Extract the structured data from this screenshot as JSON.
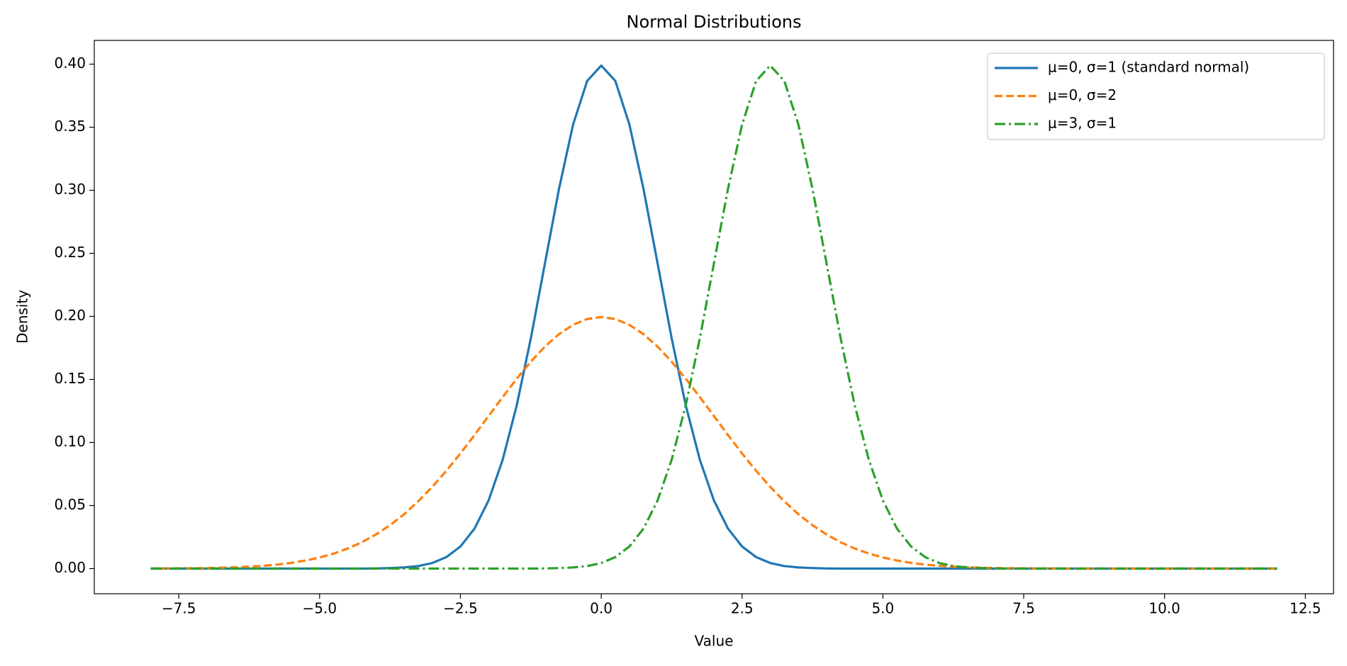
{
  "chart_data": {
    "type": "line",
    "title": "Normal Distributions",
    "xlabel": "Value",
    "ylabel": "Density",
    "x": [
      -8,
      -7.75,
      -7.5,
      -7.25,
      -7,
      -6.75,
      -6.5,
      -6.25,
      -6,
      -5.75,
      -5.5,
      -5.25,
      -5,
      -4.75,
      -4.5,
      -4.25,
      -4,
      -3.75,
      -3.5,
      -3.25,
      -3,
      -2.75,
      -2.5,
      -2.25,
      -2,
      -1.75,
      -1.5,
      -1.25,
      -1,
      -0.75,
      -0.5,
      -0.25,
      0,
      0.25,
      0.5,
      0.75,
      1,
      1.25,
      1.5,
      1.75,
      2,
      2.25,
      2.5,
      2.75,
      3,
      3.25,
      3.5,
      3.75,
      4,
      4.25,
      4.5,
      4.75,
      5,
      5.25,
      5.5,
      5.75,
      6,
      6.25,
      6.5,
      6.75,
      7,
      7.25,
      7.5,
      7.75,
      8,
      8.25,
      8.5,
      8.75,
      9,
      9.25,
      9.5,
      9.75,
      10,
      10.25,
      10.5,
      10.75,
      11,
      11.25,
      11.5,
      11.75,
      12
    ],
    "series": [
      {
        "name": "μ=0, σ=1 (standard normal)",
        "color": "#1f77b4",
        "linestyle": "solid",
        "values": [
          0,
          0,
          0,
          0,
          0,
          0,
          0,
          0,
          0,
          0,
          0,
          0,
          0,
          0,
          0,
          0,
          0.0001,
          0.0004,
          0.0009,
          0.002,
          0.0044,
          0.0091,
          0.0175,
          0.0317,
          0.054,
          0.0863,
          0.1295,
          0.1826,
          0.242,
          0.3011,
          0.3521,
          0.3867,
          0.3989,
          0.3867,
          0.3521,
          0.3011,
          0.242,
          0.1826,
          0.1295,
          0.0863,
          0.054,
          0.0317,
          0.0175,
          0.0091,
          0.0044,
          0.002,
          0.0009,
          0.0004,
          0.0001,
          0,
          0,
          0,
          0,
          0,
          0,
          0,
          0,
          0,
          0,
          0,
          0,
          0,
          0,
          0,
          0,
          0,
          0,
          0,
          0,
          0,
          0,
          0,
          0,
          0,
          0,
          0,
          0,
          0,
          0,
          0,
          0
        ]
      },
      {
        "name": "μ=0, σ=2",
        "color": "#ff7f0e",
        "linestyle": "dashed",
        "values": [
          0.0001,
          0.0001,
          0.0002,
          0.0003,
          0.0004,
          0.0007,
          0.001,
          0.0015,
          0.0022,
          0.0032,
          0.0045,
          0.0064,
          0.0088,
          0.0119,
          0.0159,
          0.0209,
          0.027,
          0.0344,
          0.0431,
          0.0533,
          0.0648,
          0.0775,
          0.0913,
          0.1059,
          0.121,
          0.136,
          0.1506,
          0.1641,
          0.176,
          0.1859,
          0.1933,
          0.1979,
          0.1995,
          0.1979,
          0.1933,
          0.1859,
          0.176,
          0.1641,
          0.1506,
          0.136,
          0.121,
          0.1059,
          0.0913,
          0.0775,
          0.0648,
          0.0533,
          0.0431,
          0.0344,
          0.027,
          0.0209,
          0.0159,
          0.0119,
          0.0088,
          0.0064,
          0.0045,
          0.0032,
          0.0022,
          0.0015,
          0.001,
          0.0007,
          0.0004,
          0.0003,
          0.0002,
          0.0001,
          0.0001,
          0,
          0,
          0,
          0,
          0,
          0,
          0,
          0,
          0,
          0,
          0,
          0,
          0,
          0,
          0,
          0
        ]
      },
      {
        "name": "μ=3, σ=1",
        "color": "#2ca02c",
        "linestyle": "dashdot",
        "values": [
          0,
          0,
          0,
          0,
          0,
          0,
          0,
          0,
          0,
          0,
          0,
          0,
          0,
          0,
          0,
          0,
          0,
          0,
          0,
          0,
          0,
          0,
          0,
          0,
          0,
          0,
          0,
          0,
          0.0001,
          0.0004,
          0.0009,
          0.002,
          0.0044,
          0.0091,
          0.0175,
          0.0317,
          0.054,
          0.0863,
          0.1295,
          0.1826,
          0.242,
          0.3011,
          0.3521,
          0.3867,
          0.3989,
          0.3867,
          0.3521,
          0.3011,
          0.242,
          0.1826,
          0.1295,
          0.0863,
          0.054,
          0.0317,
          0.0175,
          0.0091,
          0.0044,
          0.002,
          0.0009,
          0.0004,
          0.0001,
          0,
          0,
          0,
          0,
          0,
          0,
          0,
          0,
          0,
          0,
          0,
          0,
          0,
          0,
          0,
          0,
          0,
          0,
          0,
          0
        ]
      }
    ],
    "xlim": [
      -9,
      13
    ],
    "xticks": [
      {
        "value": -7.5,
        "label": "−7.5"
      },
      {
        "value": -5,
        "label": "−5.0"
      },
      {
        "value": -2.5,
        "label": "−2.5"
      },
      {
        "value": 0,
        "label": "0.0"
      },
      2.5,
      {
        "value": 5,
        "label": "5.0"
      },
      7.5,
      {
        "value": 10,
        "label": "10.0"
      },
      12.5
    ],
    "ylim": [
      -0.01995,
      0.41885
    ],
    "yticks": [
      {
        "value": 0,
        "label": "0.00"
      },
      {
        "value": 0.05,
        "label": "0.05"
      },
      {
        "value": 0.1,
        "label": "0.10"
      },
      {
        "value": 0.15,
        "label": "0.15"
      },
      {
        "value": 0.2,
        "label": "0.20"
      },
      {
        "value": 0.25,
        "label": "0.25"
      },
      {
        "value": 0.3,
        "label": "0.30"
      },
      {
        "value": 0.35,
        "label": "0.35"
      },
      {
        "value": 0.4,
        "label": "0.40"
      }
    ],
    "grid": false,
    "legend": "upper right"
  }
}
